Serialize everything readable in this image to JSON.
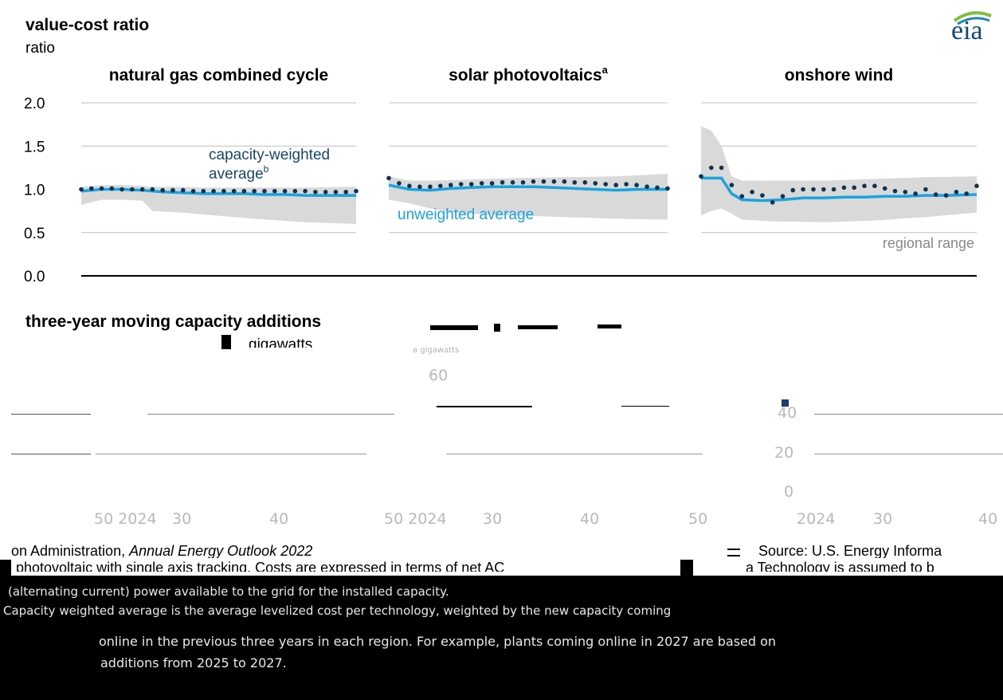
{
  "header": {
    "title": "value-cost ratio",
    "unit": "ratio",
    "logo": "eia"
  },
  "chart_data": {
    "type": "line",
    "y_ticks": [
      "2.0",
      "1.5",
      "1.0",
      "0.5",
      "0.0"
    ],
    "ylim": [
      0,
      2.0
    ],
    "xlim": [
      2023,
      2050
    ],
    "panels": [
      {
        "title": "natural gas combined cycle",
        "sup": "",
        "series": [
          {
            "name": "capacity-weighted average",
            "x": [
              2023,
              2024,
              2025,
              2026,
              2027,
              2028,
              2029,
              2030,
              2031,
              2032,
              2033,
              2034,
              2035,
              2036,
              2037,
              2038,
              2039,
              2040,
              2041,
              2042,
              2043,
              2044,
              2045,
              2046,
              2047,
              2048,
              2049,
              2050
            ],
            "values": [
              1.0,
              1.01,
              1.01,
              1.01,
              1.0,
              1.0,
              1.0,
              1.0,
              0.99,
              0.99,
              0.99,
              0.98,
              0.98,
              0.98,
              0.98,
              0.98,
              0.98,
              0.98,
              0.98,
              0.98,
              0.98,
              0.98,
              0.98,
              0.97,
              0.97,
              0.97,
              0.97,
              0.98
            ]
          },
          {
            "name": "unweighted average",
            "x": [
              2023,
              2025,
              2027,
              2029,
              2031,
              2033,
              2035,
              2037,
              2039,
              2041,
              2043,
              2045,
              2047,
              2050
            ],
            "values": [
              0.98,
              1.0,
              1.0,
              0.99,
              0.97,
              0.96,
              0.95,
              0.95,
              0.95,
              0.94,
              0.94,
              0.93,
              0.93,
              0.93
            ]
          }
        ],
        "range": {
          "name": "regional range",
          "x": [
            2023,
            2025,
            2027,
            2029,
            2030,
            2033,
            2035,
            2040,
            2045,
            2050
          ],
          "high": [
            1.03,
            1.05,
            1.05,
            1.04,
            1.03,
            1.03,
            1.02,
            1.02,
            1.02,
            1.03
          ],
          "low": [
            0.82,
            0.88,
            0.88,
            0.87,
            0.75,
            0.73,
            0.71,
            0.66,
            0.62,
            0.6
          ]
        }
      },
      {
        "title": "solar photovoltaics",
        "sup": "a",
        "series": [
          {
            "name": "capacity-weighted average",
            "x": [
              2023,
              2024,
              2025,
              2026,
              2027,
              2028,
              2029,
              2030,
              2031,
              2032,
              2033,
              2034,
              2035,
              2036,
              2037,
              2038,
              2039,
              2040,
              2041,
              2042,
              2043,
              2044,
              2045,
              2046,
              2047,
              2048,
              2049,
              2050
            ],
            "values": [
              1.13,
              1.07,
              1.04,
              1.03,
              1.03,
              1.04,
              1.05,
              1.06,
              1.06,
              1.07,
              1.07,
              1.08,
              1.08,
              1.08,
              1.09,
              1.09,
              1.09,
              1.09,
              1.08,
              1.08,
              1.07,
              1.06,
              1.05,
              1.06,
              1.05,
              1.03,
              1.02,
              1.01
            ]
          },
          {
            "name": "unweighted average",
            "x": [
              2023,
              2025,
              2027,
              2029,
              2031,
              2033,
              2035,
              2037,
              2039,
              2041,
              2043,
              2045,
              2047,
              2050
            ],
            "values": [
              1.05,
              1.0,
              0.99,
              1.01,
              1.02,
              1.03,
              1.03,
              1.03,
              1.02,
              1.01,
              1.0,
              0.99,
              1.0,
              1.0
            ]
          }
        ],
        "range": {
          "name": "regional range",
          "x": [
            2023,
            2025,
            2027,
            2030,
            2035,
            2040,
            2045,
            2050
          ],
          "high": [
            1.15,
            1.1,
            1.1,
            1.11,
            1.13,
            1.14,
            1.15,
            1.18
          ],
          "low": [
            0.88,
            0.84,
            0.78,
            0.72,
            0.7,
            0.68,
            0.66,
            0.65
          ]
        }
      },
      {
        "title": "onshore wind",
        "sup": "",
        "series": [
          {
            "name": "capacity-weighted average",
            "x": [
              2023,
              2024,
              2025,
              2026,
              2027,
              2028,
              2029,
              2030,
              2031,
              2032,
              2033,
              2034,
              2035,
              2036,
              2037,
              2038,
              2039,
              2040,
              2041,
              2042,
              2043,
              2044,
              2045,
              2046,
              2047,
              2048,
              2049,
              2050
            ],
            "values": [
              1.15,
              1.25,
              1.25,
              1.05,
              0.92,
              0.97,
              0.93,
              0.85,
              0.92,
              0.99,
              1.0,
              1.0,
              1.0,
              1.0,
              1.02,
              1.02,
              1.04,
              1.04,
              1.01,
              0.98,
              0.97,
              0.95,
              1.0,
              0.94,
              0.93,
              0.97,
              0.95,
              1.04
            ]
          },
          {
            "name": "unweighted average",
            "x": [
              2023,
              2025,
              2026,
              2027,
              2029,
              2031,
              2033,
              2035,
              2037,
              2039,
              2041,
              2043,
              2045,
              2047,
              2050
            ],
            "values": [
              1.13,
              1.13,
              0.95,
              0.88,
              0.87,
              0.88,
              0.9,
              0.9,
              0.91,
              0.91,
              0.92,
              0.92,
              0.93,
              0.93,
              0.94
            ]
          }
        ],
        "range": {
          "name": "regional range",
          "x": [
            2023,
            2024,
            2025,
            2026,
            2027,
            2030,
            2035,
            2040,
            2045,
            2050
          ],
          "high": [
            1.73,
            1.68,
            1.5,
            1.15,
            1.1,
            1.1,
            1.1,
            1.12,
            1.14,
            1.15
          ],
          "low": [
            0.7,
            0.75,
            0.78,
            0.72,
            0.65,
            0.63,
            0.62,
            0.64,
            0.68,
            0.73
          ]
        }
      }
    ],
    "annotations": {
      "weighted_line1": "capacity-weighted",
      "weighted_line2": "average",
      "weighted_sup": "b",
      "unweighted": "unweighted average",
      "range": "regional range"
    }
  },
  "lower": {
    "title": "three-year moving capacity additions",
    "unit": "gigawatts",
    "tiny_label": "a gigawatts",
    "ticks": {
      "t60": "60",
      "t40": "40",
      "t20": "20",
      "t0": "0"
    },
    "x_labels": [
      "50 2024",
      "30",
      "40",
      "50 2024",
      "30",
      "40",
      "50",
      "2024",
      "30",
      "40"
    ]
  },
  "footer": {
    "source_left": "on Administration, ",
    "source_italic": "Annual Energy Outlook 2022",
    "source_right": "Source:  U.S. Energy Informa",
    "tech_left": "photovoltaic with single axis tracking. Costs are expressed in terms of net AC",
    "tech_right": "a Technology is assumed to b",
    "line3": "(alternating current) power available to the grid for the installed capacity.",
    "line4": "Capacity weighted average is the average levelized cost per technology, weighted by the new capacity coming",
    "line5": "online in the previous three years in each region. For example, plants coming online in 2027 are based on",
    "line6": "additions from 2025 to 2027."
  }
}
